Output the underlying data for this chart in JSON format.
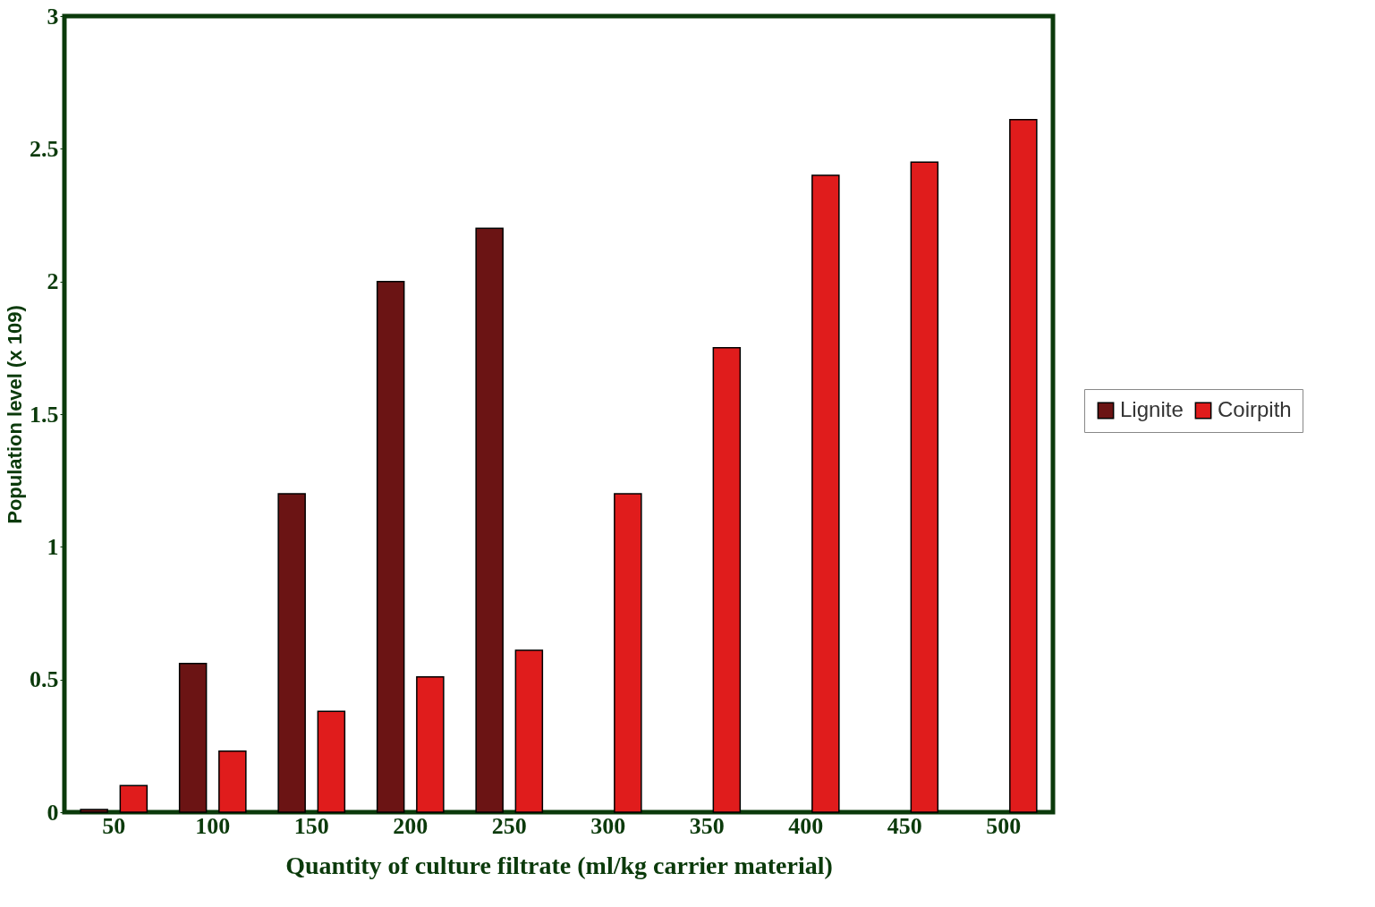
{
  "chart_data": {
    "type": "bar",
    "xlabel": "Quantity of culture filtrate (ml/kg carrier material)",
    "ylabel": "Population level (x 109)",
    "categories": [
      "50",
      "100",
      "150",
      "200",
      "250",
      "300",
      "350",
      "400",
      "450",
      "500"
    ],
    "series": [
      {
        "name": "Lignite",
        "color": "#6b1414",
        "values": [
          0.01,
          0.56,
          1.2,
          2.0,
          2.2,
          null,
          null,
          null,
          null,
          null
        ]
      },
      {
        "name": "Coirpith",
        "color": "#e01c1c",
        "values": [
          0.1,
          0.23,
          0.38,
          0.51,
          0.61,
          1.2,
          1.75,
          2.4,
          2.45,
          2.61
        ]
      }
    ],
    "ylim": [
      0,
      3
    ],
    "yticks": [
      0,
      0.5,
      1,
      1.5,
      2,
      2.5,
      3
    ],
    "grid": false,
    "legend": "right"
  }
}
